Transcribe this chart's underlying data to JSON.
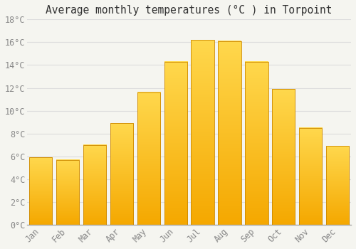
{
  "title": "Average monthly temperatures (°C ) in Torpoint",
  "months": [
    "Jan",
    "Feb",
    "Mar",
    "Apr",
    "May",
    "Jun",
    "Jul",
    "Aug",
    "Sep",
    "Oct",
    "Nov",
    "Dec"
  ],
  "temperatures": [
    5.9,
    5.7,
    7.0,
    8.9,
    11.6,
    14.3,
    16.2,
    16.1,
    14.3,
    11.9,
    8.5,
    6.9
  ],
  "bar_color_bottom": "#F5A800",
  "bar_color_top": "#FFD84D",
  "bar_edge_color": "#CC8800",
  "background_color": "#F5F5F0",
  "plot_bg_color": "#F5F5F0",
  "grid_color": "#DDDDDD",
  "tick_label_color": "#888888",
  "title_color": "#333333",
  "ylim": [
    0,
    18
  ],
  "yticks": [
    0,
    2,
    4,
    6,
    8,
    10,
    12,
    14,
    16,
    18
  ],
  "ytick_labels": [
    "0°C",
    "2°C",
    "4°C",
    "6°C",
    "8°C",
    "10°C",
    "12°C",
    "14°C",
    "16°C",
    "18°C"
  ],
  "font_family": "monospace",
  "title_fontsize": 10.5,
  "tick_fontsize": 8.5,
  "bar_width": 0.85
}
